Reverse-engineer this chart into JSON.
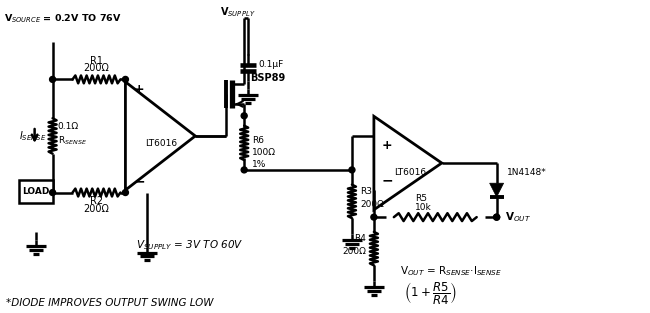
{
  "bg_color": "#ffffff",
  "line_color": "#000000",
  "line_width": 1.8,
  "fig_width": 6.5,
  "fig_height": 3.13,
  "dpi": 100,
  "footnote": "*DIODE IMPROVES OUTPUT SWING LOW",
  "vsource_label": "V$_{SOURCE}$ = 0.2V TO 76V",
  "vsupply_label": "V$_{SUPPLY}$",
  "cap_label": "0.1μF",
  "vsupply_range": "V$_{SUPPLY}$ = 3V TO 60V",
  "bsp89_label": "BSP89",
  "lt6016_label1": "LT6016",
  "lt6016_label2": "LT6016",
  "r1_label1": "R1",
  "r1_label2": "200Ω",
  "r2_label1": "R2",
  "r2_label2": "200Ω",
  "r3_label1": "R3",
  "r3_label2": "200Ω",
  "r4_label1": "R4",
  "r4_label2": "200Ω",
  "r5_label1": "R5",
  "r5_label2": "10k",
  "r6_label1": "R6",
  "r6_label2": "100Ω",
  "r6_label3": "1%",
  "rsense_top": "0.1Ω",
  "rsense_bot": "R$_{SENSE}$",
  "isense_label": "I$_{SENSE}$",
  "load_label": "LOAD",
  "n4148_label": "1N4148*",
  "vout_label": "V$_{OUT}$",
  "formula_full": "V$_{OUT}$ = R$_{SENSE}$·I$_{SENSE}$"
}
